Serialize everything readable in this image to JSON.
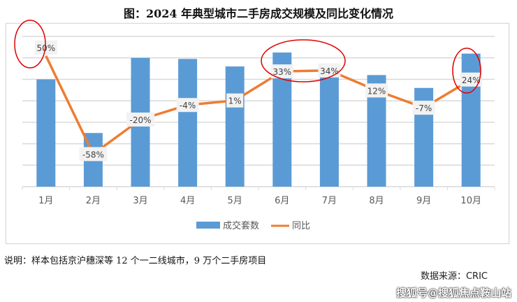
{
  "chart_data": {
    "type": "bar",
    "title": "图：2024 年典型城市二手房成交规模及同比变化情况",
    "categories": [
      "1月",
      "2月",
      "3月",
      "4月",
      "5月",
      "6月",
      "7月",
      "8月",
      "9月",
      "10月"
    ],
    "series": [
      {
        "name": "成交套数",
        "type": "bar",
        "color": "#5b9bd5",
        "values": [
          5.0,
          2.5,
          6.0,
          5.95,
          5.6,
          6.25,
          5.35,
          5.2,
          4.6,
          6.2
        ]
      },
      {
        "name": "同比",
        "type": "line",
        "color": "#ed7d31",
        "values": [
          50,
          -58,
          -20,
          -4,
          1,
          33,
          34,
          12,
          -7,
          24
        ],
        "labels": [
          "50%",
          "-58%",
          "-20%",
          "-4%",
          "1%",
          "33%",
          "34%",
          "12%",
          "-7%",
          "24%"
        ]
      }
    ],
    "grid": true,
    "legend": "bottom",
    "highlighted": [
      "1月",
      "6月",
      "7月",
      "10月"
    ],
    "highlight_color": "#e00000"
  },
  "note": "说明：样本包括京沪穗深等 12 个一二线城市，9 万个二手房项目",
  "source": "数据来源：CRIC",
  "watermark": "搜狐号@搜狐焦点鞍山站"
}
